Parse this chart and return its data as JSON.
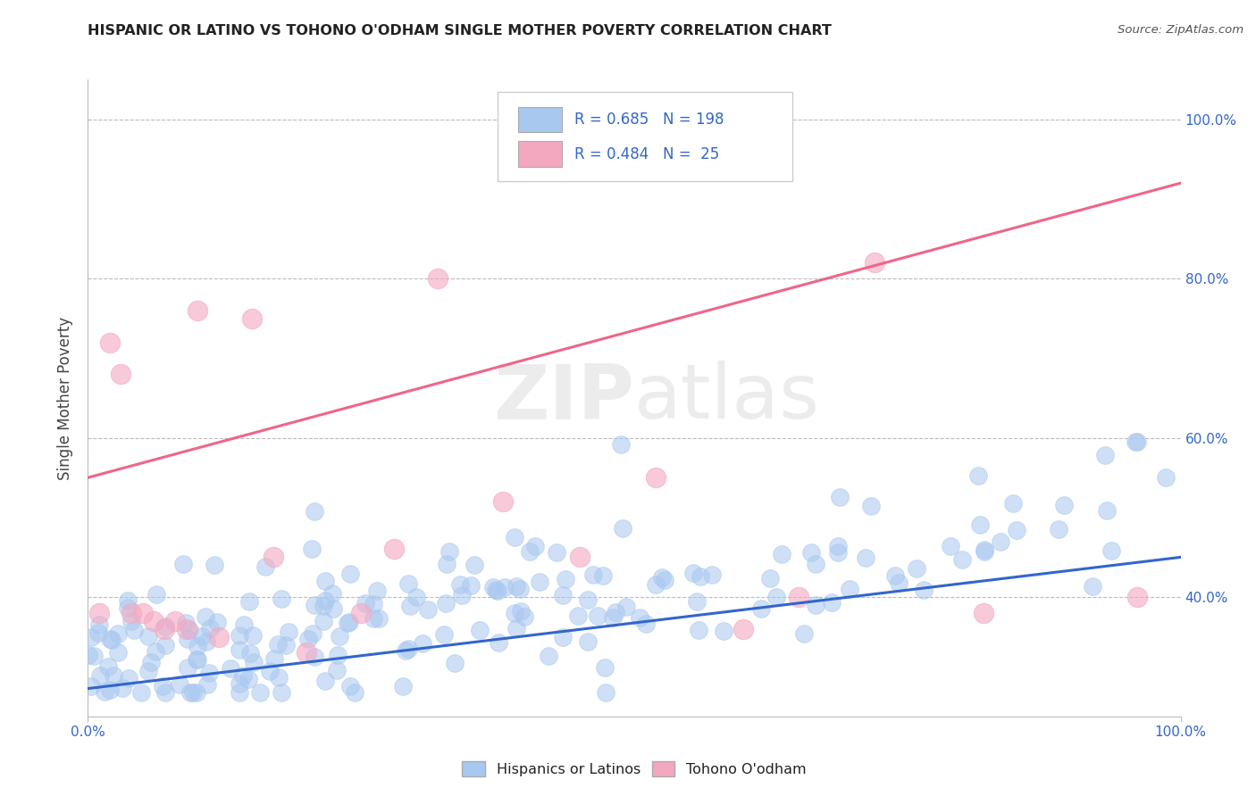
{
  "title": "HISPANIC OR LATINO VS TOHONO O'ODHAM SINGLE MOTHER POVERTY CORRELATION CHART",
  "source": "Source: ZipAtlas.com",
  "ylabel": "Single Mother Poverty",
  "watermark_zip": "ZIP",
  "watermark_atlas": "atlas",
  "xmin": 0.0,
  "xmax": 1.0,
  "ymin": 0.25,
  "ymax": 1.05,
  "blue_R": 0.685,
  "blue_N": 198,
  "pink_R": 0.484,
  "pink_N": 25,
  "blue_color": "#A8C8F0",
  "pink_color": "#F4A8C0",
  "blue_line_color": "#3366CC",
  "pink_line_color": "#EE6688",
  "legend_blue_label": "Hispanics or Latinos",
  "legend_pink_label": "Tohono O'odham",
  "ytick_positions": [
    0.4,
    0.6,
    0.8,
    1.0
  ],
  "ytick_labels": [
    "40.0%",
    "60.0%",
    "80.0%",
    "100.0%"
  ],
  "xtick_positions": [
    0.0,
    1.0
  ],
  "xtick_labels": [
    "0.0%",
    "100.0%"
  ],
  "background_color": "#FFFFFF",
  "grid_color": "#BBBBBB",
  "blue_legend_color": "#4477CC",
  "pink_legend_color": "#EE6688",
  "text_color": "#3366CC"
}
